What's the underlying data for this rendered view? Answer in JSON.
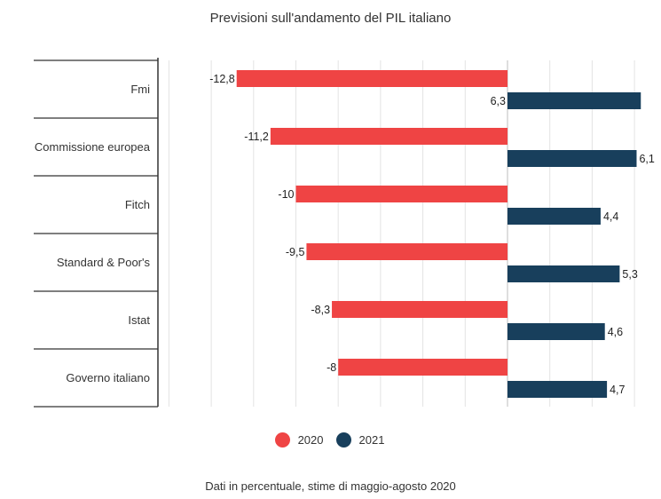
{
  "chart_data": {
    "type": "bar",
    "orientation": "horizontal",
    "title": "Previsioni sull'andamento del PIL italiano",
    "caption": "Dati in percentuale, stime di maggio-agosto 2020",
    "categories": [
      "Fmi",
      "Commissione europea",
      "Fitch",
      "Standard & Poor's",
      "Istat",
      "Governo italiano"
    ],
    "series": [
      {
        "name": "2020",
        "color": "#ef4444",
        "values": [
          -12.8,
          -11.2,
          -10,
          -9.5,
          -8.3,
          -8
        ],
        "labels": [
          "-12,8",
          "-11,2",
          "-10",
          "-9,5",
          "-8,3",
          "-8"
        ]
      },
      {
        "name": "2021",
        "color": "#183f5c",
        "values": [
          6.3,
          6.1,
          4.4,
          5.3,
          4.6,
          4.7
        ],
        "labels": [
          "6,3",
          "6,1",
          "4,4",
          "5,3",
          "4,6",
          "4,7"
        ]
      }
    ],
    "xlim": [
      -16,
      6.3
    ],
    "grid": true,
    "legend_position": "bottom"
  }
}
